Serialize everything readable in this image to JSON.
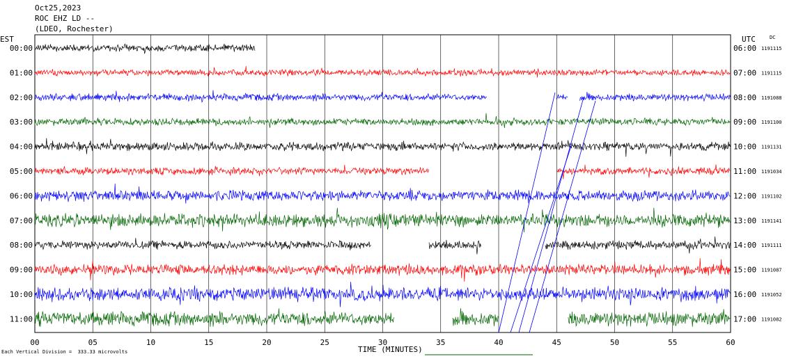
{
  "header": {
    "date": "Oct25,2023",
    "station": "ROC EHZ LD --",
    "network": "(LDEO, Rochester)"
  },
  "left_axis_label": "EST",
  "right_axis_label": "UTC",
  "dc_label": "DC",
  "footer": {
    "xlabel": "TIME (MINUTES)",
    "scale_note": "Each Vertical Division =  333.33 microvolts"
  },
  "chart_data": {
    "type": "line",
    "title": "Oct25,2023 ROC EHZ LD -- (LDEO, Rochester)",
    "xlabel": "TIME (MINUTES)",
    "xlim": [
      0,
      60
    ],
    "x_ticks": [
      "00",
      "05",
      "10",
      "15",
      "20",
      "25",
      "30",
      "35",
      "40",
      "45",
      "50",
      "55",
      "60"
    ],
    "grid": "vertical lines every minute",
    "trace_colors": [
      "#000000",
      "#ff0000",
      "#0000ff",
      "#006400"
    ],
    "rows": [
      {
        "est": "00:00",
        "utc": "06:00",
        "dc": "1191115",
        "color": "#000000",
        "amp": 6,
        "segments": [
          [
            0,
            19
          ]
        ]
      },
      {
        "est": "01:00",
        "utc": "07:00",
        "dc": "1191115",
        "color": "#ff0000",
        "amp": 5,
        "segments": [
          [
            0,
            60
          ]
        ]
      },
      {
        "est": "02:00",
        "utc": "08:00",
        "dc": "1191088",
        "color": "#0000ff",
        "amp": 6,
        "segments": [
          [
            0,
            39
          ],
          [
            45,
            46
          ],
          [
            47,
            60
          ]
        ]
      },
      {
        "est": "03:00",
        "utc": "09:00",
        "dc": "1191100",
        "color": "#006400",
        "amp": 6,
        "segments": [
          [
            0,
            60
          ]
        ]
      },
      {
        "est": "04:00",
        "utc": "10:00",
        "dc": "1191131",
        "color": "#000000",
        "amp": 7,
        "segments": [
          [
            0,
            60
          ]
        ]
      },
      {
        "est": "05:00",
        "utc": "11:00",
        "dc": "1191034",
        "color": "#ff0000",
        "amp": 6,
        "segments": [
          [
            0,
            34
          ],
          [
            45,
            60
          ]
        ]
      },
      {
        "est": "06:00",
        "utc": "12:00",
        "dc": "1191102",
        "color": "#0000ff",
        "amp": 9,
        "segments": [
          [
            0,
            60
          ]
        ]
      },
      {
        "est": "07:00",
        "utc": "13:00",
        "dc": "1191141",
        "color": "#006400",
        "amp": 11,
        "segments": [
          [
            0,
            60
          ]
        ]
      },
      {
        "est": "08:00",
        "utc": "14:00",
        "dc": "1191111",
        "color": "#000000",
        "amp": 7,
        "segments": [
          [
            0,
            29
          ],
          [
            34,
            38.5
          ],
          [
            44,
            60
          ]
        ]
      },
      {
        "est": "09:00",
        "utc": "15:00",
        "dc": "1191087",
        "color": "#ff0000",
        "amp": 9,
        "segments": [
          [
            0,
            60
          ]
        ]
      },
      {
        "est": "10:00",
        "utc": "16:00",
        "dc": "1191052",
        "color": "#0000ff",
        "amp": 11,
        "segments": [
          [
            0,
            60
          ]
        ]
      },
      {
        "est": "11:00",
        "utc": "17:00",
        "dc": "1191082",
        "color": "#006400",
        "amp": 12,
        "segments": [
          [
            0,
            31
          ],
          [
            36,
            40
          ],
          [
            46,
            60
          ]
        ]
      }
    ]
  }
}
